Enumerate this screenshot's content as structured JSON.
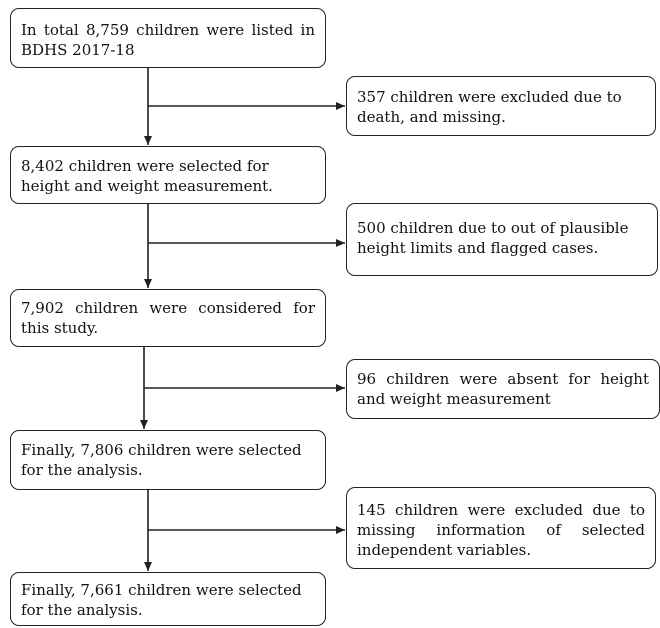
{
  "main_flow": [
    {
      "text": "In total 8,759 children were listed in BDHS 2017-18"
    },
    {
      "text": "8,402 children were selected for height and weight measurement."
    },
    {
      "text": "7,902 children were considered for this study."
    },
    {
      "text": "Finally, 7,806 children were selected for the analysis."
    },
    {
      "text": "Finally, 7,661 children were selected for the analysis."
    }
  ],
  "exclusions": [
    {
      "text": "357 children were excluded due to death, and missing."
    },
    {
      "text": "500 children due to out of plausible height limits and flagged cases."
    },
    {
      "text": "96 children were absent for height and weight measurement"
    },
    {
      "text": "145 children were excluded due to missing information of selected independent variables."
    }
  ],
  "colors": {
    "line": "#222222",
    "box_border": "#222222",
    "background": "#ffffff"
  }
}
